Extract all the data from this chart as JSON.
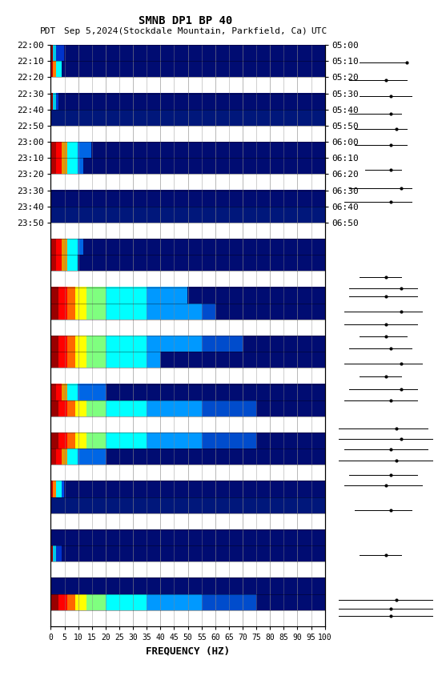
{
  "title_line1": "SMNB DP1 BP 40",
  "title_line2_left": "PDT   Sep 5,2024(Stockdale Mountain, Parkfield, Ca)",
  "title_line2_right": "UTC",
  "xlabel": "FREQUENCY (HZ)",
  "freq_ticks": [
    0,
    5,
    10,
    15,
    20,
    25,
    30,
    35,
    40,
    45,
    50,
    55,
    60,
    65,
    70,
    75,
    80,
    85,
    90,
    95,
    100
  ],
  "left_times": [
    "22:00",
    "22:10",
    "22:20",
    "22:30",
    "22:40",
    "22:50",
    "23:00",
    "23:10",
    "23:20",
    "23:30",
    "23:40",
    "23:50"
  ],
  "right_times": [
    "05:00",
    "05:10",
    "05:20",
    "05:30",
    "05:40",
    "05:50",
    "06:00",
    "06:10",
    "06:20",
    "06:30",
    "06:40",
    "06:50"
  ],
  "n_time_rows": 36,
  "background_color": "#ffffff",
  "fig_width": 5.52,
  "fig_height": 8.64
}
